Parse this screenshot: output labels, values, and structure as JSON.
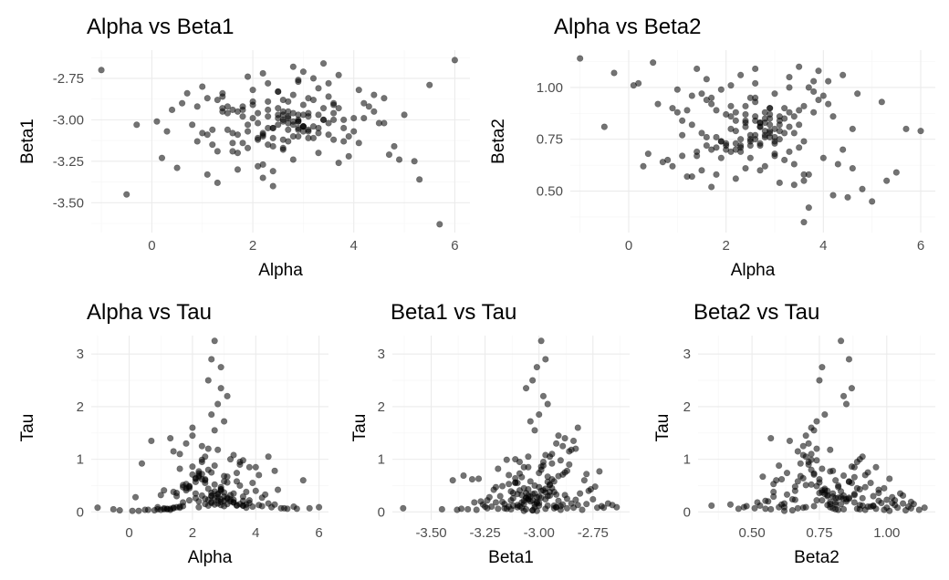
{
  "chart_data": [
    {
      "id": "p1",
      "type": "scatter",
      "title": "Alpha vs Beta1",
      "xlabel": "Alpha",
      "ylabel": "Beta1",
      "xlim": [
        -1.2,
        6.3
      ],
      "ylim": [
        -3.68,
        -2.58
      ],
      "xticks": [
        0,
        2,
        4,
        6
      ],
      "xtick_labels": [
        "0",
        "2",
        "4",
        "6"
      ],
      "yticks": [
        -3.5,
        -3.25,
        -3.0,
        -2.75
      ],
      "ytick_labels": [
        "-3.50",
        "-3.25",
        "-3.00",
        "-2.75"
      ],
      "x_var": "alpha",
      "y_var": "beta1"
    },
    {
      "id": "p2",
      "type": "scatter",
      "title": "Alpha vs Beta2",
      "xlabel": "Alpha",
      "ylabel": "Beta2",
      "xlim": [
        -1.2,
        6.3
      ],
      "ylim": [
        0.3,
        1.18
      ],
      "xticks": [
        0,
        2,
        4,
        6
      ],
      "xtick_labels": [
        "0",
        "2",
        "4",
        "6"
      ],
      "yticks": [
        0.5,
        0.75,
        1.0
      ],
      "ytick_labels": [
        "0.50",
        "0.75",
        "1.00"
      ],
      "x_var": "alpha",
      "y_var": "beta2"
    },
    {
      "id": "p3",
      "type": "scatter",
      "title": "Alpha vs Tau",
      "xlabel": "Alpha",
      "ylabel": "Tau",
      "xlim": [
        -1.2,
        6.3
      ],
      "ylim": [
        -0.15,
        3.35
      ],
      "xticks": [
        0,
        2,
        4,
        6
      ],
      "xtick_labels": [
        "0",
        "2",
        "4",
        "6"
      ],
      "yticks": [
        0,
        1,
        2,
        3
      ],
      "ytick_labels": [
        "0",
        "1",
        "2",
        "3"
      ],
      "x_var": "alpha",
      "y_var": "tau"
    },
    {
      "id": "p4",
      "type": "scatter",
      "title": "Beta1 vs Tau",
      "xlabel": "Beta1",
      "ylabel": "Tau",
      "xlim": [
        -3.68,
        -2.58
      ],
      "ylim": [
        -0.15,
        3.35
      ],
      "xticks": [
        -3.5,
        -3.25,
        -3.0,
        -2.75
      ],
      "xtick_labels": [
        "-3.50",
        "-3.25",
        "-3.00",
        "-2.75"
      ],
      "yticks": [
        0,
        1,
        2,
        3
      ],
      "ytick_labels": [
        "0",
        "1",
        "2",
        "3"
      ],
      "x_var": "beta1",
      "y_var": "tau"
    },
    {
      "id": "p5",
      "type": "scatter",
      "title": "Beta2 vs Tau",
      "xlabel": "Beta2",
      "ylabel": "Tau",
      "xlim": [
        0.3,
        1.18
      ],
      "ylim": [
        -0.15,
        3.35
      ],
      "xticks": [
        0.5,
        0.75,
        1.0
      ],
      "xtick_labels": [
        "0.50",
        "0.75",
        "1.00"
      ],
      "yticks": [
        0,
        1,
        2,
        3
      ],
      "ytick_labels": [
        "0",
        "1",
        "2",
        "3"
      ],
      "x_var": "beta2",
      "y_var": "tau"
    }
  ],
  "samples": {
    "alpha": [
      2.1,
      2.7,
      3.3,
      1.8,
      2.4,
      3.0,
      3.6,
      1.5,
      2.9,
      2.2,
      3.4,
      1.9,
      2.6,
      3.1,
      4.0,
      1.2,
      2.3,
      2.8,
      3.5,
      1.7,
      2.5,
      3.2,
      4.3,
      0.9,
      2.0,
      2.7,
      3.8,
      1.4,
      2.4,
      3.0,
      4.6,
      0.6,
      1.9,
      2.6,
      3.3,
      1.1,
      2.2,
      2.9,
      3.7,
      1.6,
      2.5,
      3.1,
      4.1,
      0.8,
      2.1,
      2.8,
      3.6,
      1.3,
      2.3,
      3.0,
      4.4,
      0.3,
      1.8,
      2.6,
      3.4,
      1.0,
      2.2,
      2.9,
      3.9,
      1.5,
      2.4,
      3.2,
      4.8,
      0.1,
      1.7,
      2.7,
      3.5,
      1.2,
      2.0,
      2.8,
      4.2,
      1.6,
      2.5,
      3.3,
      5.0,
      -0.3,
      2.1,
      2.9,
      3.7,
      1.4,
      2.3,
      3.1,
      4.5,
      0.5,
      1.9,
      2.6,
      3.6,
      1.1,
      2.2,
      3.0,
      5.3,
      -1.0,
      2.4,
      2.8,
      5.7,
      6.0,
      -0.5,
      3.4,
      1.3,
      2.6,
      2.7,
      2.9,
      3.1,
      2.5,
      2.8,
      3.0,
      2.6,
      2.7,
      2.9,
      1.6,
      3.8,
      1.8,
      3.5,
      2.0,
      3.2,
      2.3,
      4.1,
      1.4,
      3.9,
      0.7,
      4.7,
      5.5,
      0.2,
      2.2,
      3.3,
      1.7,
      2.9,
      2.4,
      3.6,
      1.0,
      4.4,
      2.1,
      3.0,
      2.5,
      3.4,
      1.9,
      2.7,
      3.8,
      1.3,
      2.3,
      3.1,
      2.6,
      2.8,
      3.5,
      1.6,
      4.2,
      2.0,
      2.9,
      0.4,
      5.2,
      3.2,
      1.5,
      2.4,
      3.7,
      1.8,
      2.6,
      4.6,
      1.1,
      2.2,
      3.0,
      2.8,
      3.3,
      1.7,
      2.5,
      4.0,
      0.9,
      2.1,
      3.6,
      2.7,
      3.1,
      1.4,
      4.9,
      2.3,
      2.9,
      1.2,
      3.4
    ],
    "beta1": [
      -3.02,
      -2.95,
      -3.08,
      -2.98,
      -3.05,
      -2.91,
      -3.12,
      -2.96,
      -3.0,
      -3.1,
      -2.93,
      -3.03,
      -2.88,
      -3.07,
      -2.99,
      -3.15,
      -2.94,
      -3.01,
      -2.86,
      -3.09,
      -2.97,
      -3.04,
      -2.92,
      -3.13,
      -2.89,
      -3.06,
      -3.0,
      -2.84,
      -3.11,
      -2.97,
      -3.02,
      -2.9,
      -3.17,
      -2.95,
      -3.05,
      -2.87,
      -3.08,
      -3.01,
      -2.93,
      -3.14,
      -2.99,
      -3.06,
      -2.82,
      -3.03,
      -2.96,
      -3.1,
      -2.91,
      -3.19,
      -2.98,
      -3.04,
      -2.85,
      -3.07,
      -2.94,
      -3.12,
      -3.0,
      -2.8,
      -3.09,
      -2.97,
      -3.22,
      -2.92,
      -3.05,
      -2.88,
      -3.16,
      -3.01,
      -2.95,
      -3.13,
      -2.78,
      -3.06,
      -2.99,
      -3.24,
      -2.9,
      -3.08,
      -2.83,
      -3.2,
      -2.97,
      -3.03,
      -3.11,
      -2.76,
      -3.26,
      -2.93,
      -3.15,
      -2.87,
      -3.02,
      -3.29,
      -2.74,
      -3.18,
      -2.96,
      -3.33,
      -2.72,
      -3.07,
      -3.36,
      -2.7,
      -3.4,
      -2.68,
      -3.63,
      -2.64,
      -3.45,
      -2.66,
      -3.38,
      -3.0,
      -2.99,
      -3.01,
      -2.98,
      -3.03,
      -2.96,
      -3.04,
      -2.97,
      -3.02,
      -3.06,
      -2.94,
      -3.05,
      -2.92,
      -3.09,
      -2.91,
      -3.11,
      -2.89,
      -3.14,
      -2.86,
      -3.1,
      -2.84,
      -3.21,
      -2.79,
      -3.23,
      -3.27,
      -2.81,
      -3.3,
      -2.77,
      -3.16,
      -2.9,
      -3.08,
      -2.95,
      -3.12,
      -3.04,
      -2.93,
      -3.0,
      -3.07,
      -2.98,
      -3.13,
      -2.88,
      -3.05,
      -2.96,
      -3.17,
      -2.85,
      -3.02,
      -3.19,
      -2.99,
      -2.82,
      -3.1,
      -2.94,
      -3.25,
      -2.75,
      -3.06,
      -3.31,
      -2.73,
      -3.14,
      -3.01,
      -2.87,
      -3.09,
      -3.35,
      -2.71,
      -3.03,
      -2.97,
      -3.2,
      -2.83,
      -3.07,
      -2.92,
      -3.28,
      -3.0,
      -2.89,
      -3.11,
      -2.95,
      -3.24,
      -2.78,
      -3.05
    ],
    "beta2": [
      0.8,
      0.72,
      0.88,
      0.76,
      0.84,
      0.68,
      0.91,
      0.78,
      0.82,
      0.7,
      0.86,
      0.74,
      0.93,
      0.79,
      0.66,
      0.89,
      0.75,
      0.83,
      0.71,
      0.95,
      0.77,
      0.85,
      0.63,
      0.9,
      0.73,
      0.81,
      0.98,
      0.69,
      0.87,
      0.76,
      0.61,
      0.92,
      0.74,
      0.84,
      1.0,
      0.67,
      0.88,
      0.79,
      0.58,
      0.94,
      0.72,
      0.82,
      1.03,
      0.65,
      0.86,
      0.77,
      0.55,
      0.96,
      0.71,
      0.8,
      1.06,
      0.62,
      0.89,
      0.75,
      0.53,
      0.99,
      0.73,
      0.85,
      1.08,
      0.6,
      0.91,
      0.78,
      0.51,
      1.01,
      0.7,
      0.83,
      1.1,
      0.57,
      0.87,
      0.76,
      0.48,
      1.04,
      0.74,
      0.81,
      0.45,
      1.07,
      0.69,
      0.9,
      0.42,
      1.09,
      0.72,
      0.86,
      0.47,
      1.12,
      0.66,
      0.95,
      0.35,
      0.84,
      0.79,
      0.97,
      0.55,
      1.14,
      0.81,
      0.62,
      0.8,
      0.79,
      0.81,
      0.78,
      0.82,
      0.77,
      0.83,
      0.76,
      0.84,
      0.75,
      0.85,
      0.74,
      0.86,
      0.73,
      0.87,
      0.72,
      0.88,
      0.71,
      0.89,
      0.7,
      0.9,
      0.69,
      0.92,
      0.67,
      0.94,
      0.64,
      0.97,
      0.59,
      1.02,
      0.56,
      1.05,
      0.52,
      0.78,
      0.83,
      0.74,
      0.88,
      0.7,
      0.91,
      0.67,
      0.95,
      0.63,
      0.99,
      0.6,
      1.03,
      0.57,
      1.06,
      0.54,
      1.09,
      0.79,
      0.82,
      0.76,
      0.86,
      0.72,
      0.9,
      0.68,
      0.93,
      0.65,
      0.97,
      0.61,
      1.0,
      0.58,
      1.02,
      0.8,
      0.77,
      0.84,
      0.73,
      0.88,
      0.69,
      0.92,
      0.66,
      0.96,
      0.62,
      1.01,
      0.58,
      0.81,
      0.75
    ],
    "tau": [
      0.35,
      0.52,
      0.18,
      0.41,
      0.25,
      0.68,
      0.12,
      0.3,
      0.47,
      0.09,
      0.58,
      0.22,
      0.75,
      0.15,
      0.4,
      0.06,
      0.62,
      0.28,
      0.9,
      0.11,
      0.44,
      0.2,
      0.33,
      0.05,
      0.71,
      0.26,
      0.17,
      0.08,
      0.55,
      0.37,
      0.14,
      0.04,
      0.49,
      0.31,
      0.23,
      0.07,
      0.66,
      0.19,
      0.38,
      0.1,
      0.8,
      0.27,
      0.13,
      0.03,
      0.57,
      0.34,
      0.21,
      0.06,
      0.95,
      0.29,
      0.16,
      0.02,
      0.45,
      0.36,
      0.12,
      0.04,
      0.73,
      0.24,
      0.1,
      0.09,
      1.05,
      0.32,
      0.07,
      0.02,
      0.51,
      0.39,
      0.15,
      0.05,
      0.86,
      0.22,
      0.11,
      0.08,
      1.2,
      0.18,
      0.06,
      0.03,
      0.64,
      0.43,
      0.14,
      0.07,
      0.99,
      0.25,
      0.09,
      0.04,
      0.48,
      0.3,
      0.12,
      0.05,
      0.77,
      0.21,
      0.06,
      0.08,
      0.6,
      0.16,
      0.07,
      0.09,
      0.05,
      0.13,
      0.04,
      1.85,
      3.25,
      2.75,
      2.2,
      2.5,
      2.05,
      1.72,
      2.9,
      1.55,
      2.35,
      1.1,
      0.85,
      1.3,
      0.95,
      1.45,
      1.0,
      1.25,
      0.7,
      1.15,
      0.55,
      1.35,
      0.42,
      0.6,
      0.28,
      0.2,
      0.35,
      0.18,
      0.4,
      0.15,
      0.98,
      0.32,
      1.05,
      0.26,
      0.58,
      0.12,
      0.74,
      0.45,
      0.88,
      0.22,
      1.4,
      0.31,
      0.67,
      0.19,
      1.18,
      0.5,
      0.82,
      0.27,
      1.6,
      0.13,
      0.92,
      0.1,
      0.24,
      0.36,
      0.62,
      0.08,
      0.53,
      0.17,
      0.78,
      0.41,
      0.69,
      0.11,
      0.34,
      1.08,
      0.47,
      0.23,
      0.85,
      0.09,
      0.63,
      0.29,
      0.14,
      0.56,
      0.38,
      0.07,
      0.72,
      0.43
    ]
  }
}
